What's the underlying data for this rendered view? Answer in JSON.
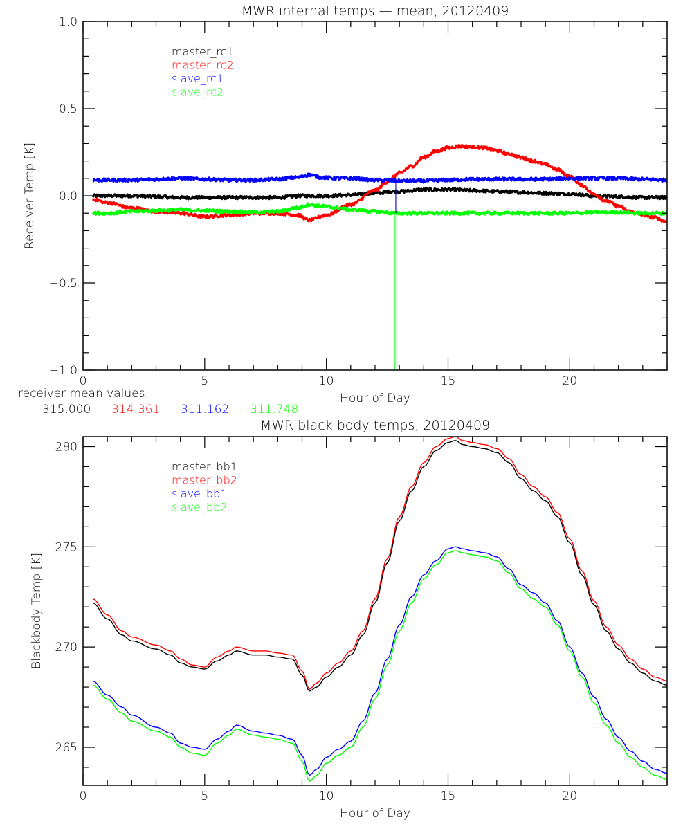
{
  "chart_data": [
    {
      "type": "line",
      "title": "MWR internal temps — mean, 20120409",
      "xlabel": "Hour of Day",
      "ylabel": "Receiver Temp [K]",
      "xlim": [
        0,
        24
      ],
      "ylim": [
        -1.0,
        1.0
      ],
      "xticks": [
        0,
        5,
        10,
        15,
        20
      ],
      "xtick_labels": [
        "0",
        "5",
        "10",
        "15",
        "20"
      ],
      "yticks": [
        -1.0,
        -0.5,
        0.0,
        0.5,
        1.0
      ],
      "ytick_labels": [
        "−1.0",
        "−0.5",
        "0.0",
        "0.5",
        "1.0"
      ],
      "grid": false,
      "legend_position": "top-left (inside)",
      "series": [
        {
          "name": "master_rc1",
          "color": "#000000",
          "x": [
            0.4,
            1,
            2,
            3,
            4,
            5,
            6,
            7,
            8,
            9,
            9.3,
            10,
            11,
            12,
            12.8,
            13,
            14,
            15,
            16,
            17,
            18,
            19,
            20,
            21,
            22,
            23,
            24
          ],
          "y": [
            0.0,
            0.0,
            0.0,
            -0.005,
            -0.01,
            -0.01,
            -0.01,
            -0.01,
            -0.01,
            0.0,
            0.0,
            0.0,
            0.005,
            0.015,
            0.025,
            0.025,
            0.035,
            0.035,
            0.03,
            0.025,
            0.02,
            0.015,
            0.01,
            0.0,
            -0.005,
            -0.01,
            -0.01
          ]
        },
        {
          "name": "master_rc2",
          "color": "#ff0000",
          "x": [
            0.4,
            1,
            2,
            3,
            4,
            5,
            6,
            7,
            8,
            8.8,
            9.3,
            10,
            11,
            12,
            12.5,
            13,
            13.5,
            14,
            14.5,
            15,
            15.5,
            16,
            16.5,
            17,
            17.5,
            18,
            18.5,
            19,
            19.5,
            20,
            20.5,
            21,
            21.5,
            22,
            22.5,
            23,
            23.5,
            24
          ],
          "y": [
            -0.02,
            -0.04,
            -0.07,
            -0.09,
            -0.1,
            -0.12,
            -0.11,
            -0.1,
            -0.1,
            -0.11,
            -0.14,
            -0.11,
            -0.05,
            0.03,
            0.08,
            0.13,
            0.17,
            0.22,
            0.255,
            0.275,
            0.285,
            0.28,
            0.275,
            0.26,
            0.24,
            0.22,
            0.2,
            0.18,
            0.15,
            0.11,
            0.06,
            0.01,
            -0.03,
            -0.06,
            -0.09,
            -0.11,
            -0.125,
            -0.15
          ]
        },
        {
          "name": "slave_rc1",
          "color": "#0000ff",
          "x": [
            0.4,
            1,
            2,
            3,
            4,
            5,
            6,
            7,
            8,
            8.8,
            9.3,
            9.8,
            10.5,
            11,
            12,
            13,
            14,
            15,
            16,
            17,
            18,
            19,
            20,
            21,
            22,
            23,
            24
          ],
          "y": [
            0.09,
            0.09,
            0.09,
            0.095,
            0.1,
            0.095,
            0.09,
            0.09,
            0.095,
            0.105,
            0.12,
            0.105,
            0.1,
            0.1,
            0.09,
            0.085,
            0.085,
            0.09,
            0.095,
            0.095,
            0.095,
            0.095,
            0.1,
            0.1,
            0.1,
            0.095,
            0.09
          ]
        },
        {
          "name": "slave_rc2",
          "color": "#00ff00",
          "x": [
            0.4,
            1,
            2,
            3,
            4,
            5,
            6,
            7,
            8,
            8.8,
            9.3,
            9.8,
            10.5,
            11,
            12,
            12.8,
            13,
            14,
            15,
            16,
            17,
            18,
            19,
            20,
            21,
            22,
            23,
            24
          ],
          "y": [
            -0.1,
            -0.1,
            -0.09,
            -0.085,
            -0.08,
            -0.085,
            -0.09,
            -0.095,
            -0.09,
            -0.07,
            -0.05,
            -0.06,
            -0.07,
            -0.08,
            -0.09,
            -0.1,
            -0.1,
            -0.1,
            -0.1,
            -0.1,
            -0.1,
            -0.1,
            -0.1,
            -0.1,
            -0.095,
            -0.095,
            -0.1,
            -0.1
          ]
        }
      ],
      "spike": {
        "x": 12.85,
        "description": "vertical data dropout spike (slave_rc2 to below -1.0, slave_rc1/master_rc1 short)"
      },
      "annotation": {
        "label": "receiver mean values:",
        "values": [
          {
            "text": "315.000",
            "color": "#000000"
          },
          {
            "text": "314.361",
            "color": "#ff0000"
          },
          {
            "text": "311.162",
            "color": "#0000ff"
          },
          {
            "text": "311.748",
            "color": "#00ff00"
          }
        ]
      }
    },
    {
      "type": "line",
      "title": "MWR black body temps, 20120409",
      "xlabel": "Hour of Day",
      "ylabel": "Blackbody Temp [K]",
      "xlim": [
        0,
        24
      ],
      "ylim": [
        263.1,
        280.5
      ],
      "xticks": [
        0,
        5,
        10,
        15,
        20
      ],
      "xtick_labels": [
        "0",
        "5",
        "10",
        "15",
        "20"
      ],
      "yticks": [
        265,
        270,
        275,
        280
      ],
      "ytick_labels": [
        "265",
        "270",
        "275",
        "280"
      ],
      "grid": false,
      "legend_position": "top-left (inside)",
      "series": [
        {
          "name": "master_bb1",
          "color": "#000000",
          "x": [
            0.4,
            1,
            1.6,
            2,
            3,
            3.6,
            4,
            4.5,
            5,
            5.5,
            6,
            6.3,
            7,
            7.5,
            8,
            8.6,
            9,
            9.3,
            9.6,
            10,
            10.5,
            11,
            11.5,
            12,
            12.5,
            13,
            13.5,
            14,
            14.5,
            15,
            15.3,
            15.6,
            16,
            16.5,
            17,
            17.5,
            18,
            18.5,
            19,
            19.5,
            20,
            20.5,
            21,
            21.5,
            22,
            22.5,
            23,
            23.5,
            24
          ],
          "y": [
            272.2,
            271.4,
            270.6,
            270.3,
            269.9,
            269.6,
            269.2,
            269.0,
            268.9,
            269.3,
            269.6,
            269.8,
            269.6,
            269.6,
            269.5,
            269.4,
            268.6,
            267.8,
            268.0,
            268.5,
            269.0,
            269.6,
            270.6,
            272.2,
            274.2,
            276.3,
            277.8,
            279.0,
            279.8,
            280.2,
            280.3,
            280.1,
            280.0,
            279.9,
            279.7,
            279.2,
            278.4,
            277.8,
            277.3,
            276.5,
            275.2,
            273.6,
            272.1,
            270.8,
            269.9,
            269.2,
            268.7,
            268.3,
            268.1
          ]
        },
        {
          "name": "master_bb2",
          "color": "#ff0000",
          "x": [
            0.4,
            1,
            1.6,
            2,
            3,
            3.6,
            4,
            4.5,
            5,
            5.5,
            6,
            6.3,
            7,
            7.5,
            8,
            8.6,
            9,
            9.3,
            9.6,
            10,
            10.5,
            11,
            11.5,
            12,
            12.5,
            13,
            13.5,
            14,
            14.5,
            15,
            15.3,
            15.6,
            16,
            16.5,
            17,
            17.5,
            18,
            18.5,
            19,
            19.5,
            20,
            20.5,
            21,
            21.5,
            22,
            22.5,
            23,
            23.5,
            24
          ],
          "y": [
            272.4,
            271.6,
            270.8,
            270.5,
            270.1,
            269.8,
            269.4,
            269.1,
            269.0,
            269.5,
            269.8,
            270.0,
            269.8,
            269.8,
            269.7,
            269.6,
            268.8,
            267.9,
            268.2,
            268.7,
            269.2,
            269.8,
            270.8,
            272.4,
            274.4,
            276.5,
            278.0,
            279.2,
            280.0,
            280.4,
            280.5,
            280.3,
            280.2,
            280.1,
            279.9,
            279.4,
            278.6,
            278.0,
            277.5,
            276.7,
            275.4,
            273.8,
            272.3,
            271.0,
            270.1,
            269.4,
            268.9,
            268.5,
            268.3
          ]
        },
        {
          "name": "slave_bb1",
          "color": "#0000ff",
          "x": [
            0.4,
            1,
            1.6,
            2,
            3,
            3.6,
            4,
            4.5,
            5,
            5.5,
            6,
            6.3,
            7,
            7.5,
            8,
            8.6,
            9,
            9.3,
            9.6,
            10,
            10.5,
            11,
            11.5,
            12,
            12.5,
            13,
            13.5,
            14,
            14.5,
            15,
            15.3,
            15.6,
            16,
            16.5,
            17,
            17.5,
            18,
            18.5,
            19,
            19.5,
            20,
            20.5,
            21,
            21.5,
            22,
            22.5,
            23,
            23.5,
            24
          ],
          "y": [
            268.3,
            267.6,
            267.0,
            266.6,
            266.0,
            265.7,
            265.2,
            265.0,
            264.9,
            265.4,
            265.8,
            266.1,
            265.8,
            265.7,
            265.6,
            265.4,
            264.6,
            263.6,
            263.9,
            264.5,
            264.9,
            265.3,
            266.3,
            267.7,
            269.4,
            271.1,
            272.5,
            273.6,
            274.3,
            274.9,
            275.0,
            274.9,
            274.8,
            274.7,
            274.5,
            273.9,
            273.1,
            272.7,
            272.2,
            271.3,
            270.0,
            268.7,
            267.5,
            266.4,
            265.5,
            264.8,
            264.3,
            263.9,
            263.7
          ]
        },
        {
          "name": "slave_bb2",
          "color": "#00ff00",
          "x": [
            0.4,
            1,
            1.6,
            2,
            3,
            3.6,
            4,
            4.5,
            5,
            5.5,
            6,
            6.3,
            7,
            7.5,
            8,
            8.6,
            9,
            9.3,
            9.6,
            10,
            10.5,
            11,
            11.5,
            12,
            12.5,
            13,
            13.5,
            14,
            14.5,
            15,
            15.3,
            15.6,
            16,
            16.5,
            17,
            17.5,
            18,
            18.5,
            19,
            19.5,
            20,
            20.5,
            21,
            21.5,
            22,
            22.5,
            23,
            23.5,
            24
          ],
          "y": [
            268.1,
            267.4,
            266.7,
            266.3,
            265.8,
            265.5,
            265.0,
            264.7,
            264.6,
            265.2,
            265.6,
            265.9,
            265.6,
            265.5,
            265.4,
            265.2,
            264.3,
            263.3,
            263.6,
            264.2,
            264.6,
            265.0,
            266.0,
            267.4,
            269.1,
            270.8,
            272.2,
            273.4,
            274.1,
            274.7,
            274.8,
            274.7,
            274.6,
            274.5,
            274.3,
            273.7,
            272.9,
            272.4,
            272.0,
            271.1,
            269.8,
            268.5,
            267.2,
            266.1,
            265.2,
            264.5,
            264.0,
            263.6,
            263.4
          ]
        }
      ]
    }
  ]
}
